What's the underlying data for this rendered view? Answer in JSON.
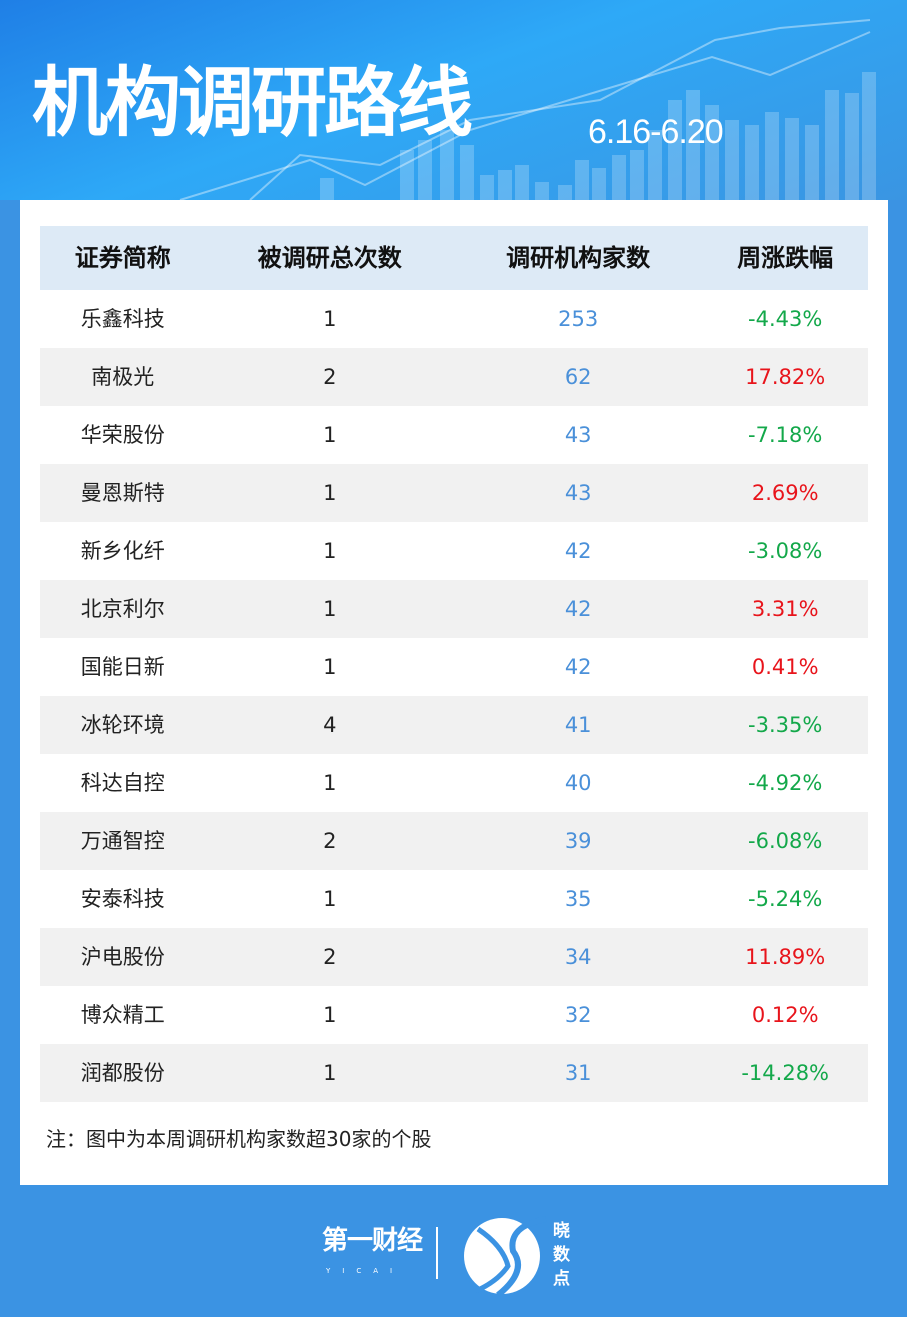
{
  "header": {
    "title": "机构调研路线",
    "date_range": "6.16-6.20"
  },
  "table": {
    "columns": [
      "证券简称",
      "被调研总次数",
      "调研机构家数",
      "周涨跌幅"
    ],
    "rows": [
      {
        "name": "乐鑫科技",
        "times": "1",
        "orgs": "253",
        "change": "-4.43%",
        "dir": "down"
      },
      {
        "name": "南极光",
        "times": "2",
        "orgs": "62",
        "change": "17.82%",
        "dir": "up"
      },
      {
        "name": "华荣股份",
        "times": "1",
        "orgs": "43",
        "change": "-7.18%",
        "dir": "down"
      },
      {
        "name": "曼恩斯特",
        "times": "1",
        "orgs": "43",
        "change": "2.69%",
        "dir": "up"
      },
      {
        "name": "新乡化纤",
        "times": "1",
        "orgs": "42",
        "change": "-3.08%",
        "dir": "down"
      },
      {
        "name": "北京利尔",
        "times": "1",
        "orgs": "42",
        "change": "3.31%",
        "dir": "up"
      },
      {
        "name": "国能日新",
        "times": "1",
        "orgs": "42",
        "change": "0.41%",
        "dir": "up"
      },
      {
        "name": "冰轮环境",
        "times": "4",
        "orgs": "41",
        "change": "-3.35%",
        "dir": "down"
      },
      {
        "name": "科达自控",
        "times": "1",
        "orgs": "40",
        "change": "-4.92%",
        "dir": "down"
      },
      {
        "name": "万通智控",
        "times": "2",
        "orgs": "39",
        "change": "-6.08%",
        "dir": "down"
      },
      {
        "name": "安泰科技",
        "times": "1",
        "orgs": "35",
        "change": "-5.24%",
        "dir": "down"
      },
      {
        "name": "沪电股份",
        "times": "2",
        "orgs": "34",
        "change": "11.89%",
        "dir": "up"
      },
      {
        "name": "博众精工",
        "times": "1",
        "orgs": "32",
        "change": "0.12%",
        "dir": "up"
      },
      {
        "name": "润都股份",
        "times": "1",
        "orgs": "31",
        "change": "-14.28%",
        "dir": "down"
      }
    ]
  },
  "note": "注：图中为本周调研机构家数超30家的个股",
  "footer": {
    "brand1": "第一财经",
    "brand1_sub": "YICAI",
    "brand2": "晓数点"
  },
  "colors": {
    "up": "#e8141b",
    "down": "#13a84a",
    "orgs": "#4a90d9",
    "background": "#3b93e3",
    "header_row": "#ddeaf6"
  }
}
